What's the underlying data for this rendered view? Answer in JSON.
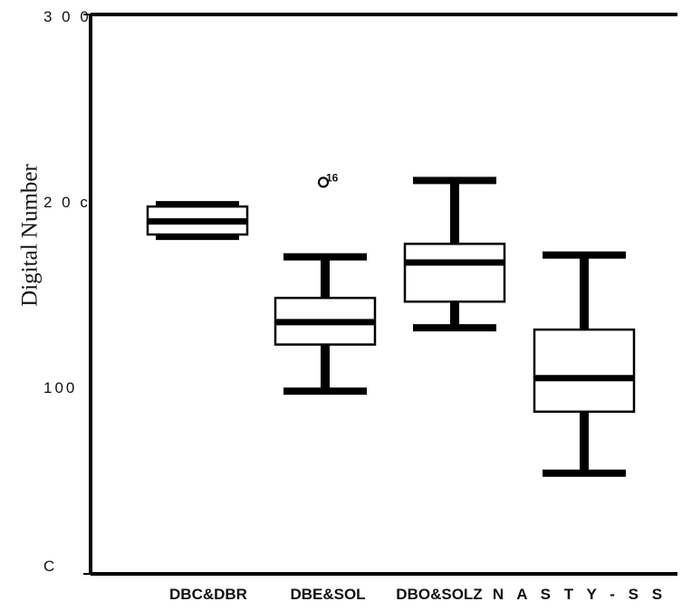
{
  "chart_data": {
    "type": "box",
    "title": "",
    "xlabel": "",
    "ylabel": "Digital Number",
    "ylim": [
      0,
      300
    ],
    "y_tick_labels": [
      "3 0 0",
      "2 0 c",
      "100",
      "C"
    ],
    "y_tick_values": [
      300,
      200,
      100,
      0
    ],
    "categories": [
      "DBC&DBR",
      "DBE&SOL",
      "DBO&SOLZ",
      "N A S T Y - S S"
    ],
    "boxes": [
      {
        "whisker_low": 181,
        "q1": 182,
        "median": 189,
        "q3": 197,
        "whisker_high": 198
      },
      {
        "whisker_low": 98,
        "q1": 123,
        "median": 135,
        "q3": 148,
        "whisker_high": 170
      },
      {
        "whisker_low": 132,
        "q1": 146,
        "median": 167,
        "q3": 177,
        "whisker_high": 211
      },
      {
        "whisker_low": 54,
        "q1": 87,
        "median": 105,
        "q3": 131,
        "whisker_high": 171
      }
    ],
    "outliers": [
      {
        "category": "DBE&SOL",
        "value": 210,
        "label": "16"
      }
    ],
    "grid": false,
    "legend": "none"
  }
}
